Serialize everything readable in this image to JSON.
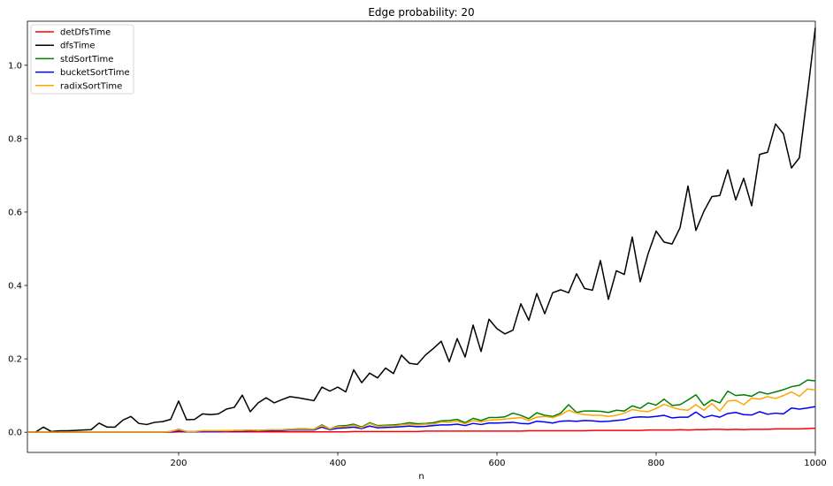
{
  "chart_data": {
    "type": "line",
    "title": "Edge probability: 20",
    "xlabel": "n",
    "ylabel": "",
    "xlim": [
      10,
      1000
    ],
    "ylim": [
      -0.055,
      1.12
    ],
    "x_ticks": [
      200,
      400,
      600,
      800,
      1000
    ],
    "y_ticks": [
      0.0,
      0.2,
      0.4,
      0.6,
      0.8,
      1.0
    ],
    "x_tick_labels": [
      "200",
      "400",
      "600",
      "800",
      "1000"
    ],
    "y_tick_labels": [
      "0.0",
      "0.2",
      "0.4",
      "0.6",
      "0.8",
      "1.0"
    ],
    "grid": false,
    "legend_position": "top-left",
    "x": [
      10,
      20,
      30,
      40,
      50,
      60,
      70,
      80,
      90,
      100,
      110,
      120,
      130,
      140,
      150,
      160,
      170,
      180,
      190,
      200,
      210,
      220,
      230,
      240,
      250,
      260,
      270,
      280,
      290,
      300,
      310,
      320,
      330,
      340,
      350,
      360,
      370,
      380,
      390,
      400,
      410,
      420,
      430,
      440,
      450,
      460,
      470,
      480,
      490,
      500,
      510,
      520,
      530,
      540,
      550,
      560,
      570,
      580,
      590,
      600,
      610,
      620,
      630,
      640,
      650,
      660,
      670,
      680,
      690,
      700,
      710,
      720,
      730,
      740,
      750,
      760,
      770,
      780,
      790,
      800,
      810,
      820,
      830,
      840,
      850,
      860,
      870,
      880,
      890,
      900,
      910,
      920,
      930,
      940,
      950,
      960,
      970,
      980,
      990,
      1000
    ],
    "series": [
      {
        "name": "detDfsTime",
        "color": "#ff0000",
        "values": [
          0,
          0,
          0,
          0,
          0,
          0,
          0,
          0,
          0,
          0,
          0,
          0,
          0,
          0,
          0,
          0,
          0,
          0,
          0,
          0.001,
          0.001,
          0.001,
          0.001,
          0.001,
          0.001,
          0.001,
          0.001,
          0.001,
          0.001,
          0.001,
          0.001,
          0.001,
          0.001,
          0.001,
          0.001,
          0.001,
          0.001,
          0.001,
          0.001,
          0.001,
          0.001,
          0.002,
          0.002,
          0.002,
          0.002,
          0.002,
          0.002,
          0.002,
          0.002,
          0.002,
          0.003,
          0.003,
          0.003,
          0.003,
          0.003,
          0.003,
          0.003,
          0.003,
          0.003,
          0.003,
          0.003,
          0.003,
          0.003,
          0.004,
          0.004,
          0.004,
          0.004,
          0.004,
          0.004,
          0.004,
          0.004,
          0.005,
          0.005,
          0.005,
          0.005,
          0.005,
          0.005,
          0.005,
          0.006,
          0.006,
          0.006,
          0.006,
          0.007,
          0.006,
          0.007,
          0.007,
          0.008,
          0.008,
          0.007,
          0.008,
          0.007,
          0.008,
          0.008,
          0.008,
          0.009,
          0.009,
          0.009,
          0.009,
          0.01,
          0.011
        ]
      },
      {
        "name": "dfsTime",
        "color": "#000000",
        "values": [
          0,
          0,
          0.014,
          0.002,
          0.004,
          0.004,
          0.005,
          0.006,
          0.007,
          0.025,
          0.014,
          0.014,
          0.033,
          0.043,
          0.024,
          0.021,
          0.027,
          0.029,
          0.035,
          0.085,
          0.034,
          0.035,
          0.05,
          0.048,
          0.05,
          0.063,
          0.068,
          0.101,
          0.056,
          0.08,
          0.094,
          0.08,
          0.089,
          0.097,
          0.094,
          0.09,
          0.086,
          0.123,
          0.112,
          0.123,
          0.11,
          0.17,
          0.135,
          0.161,
          0.148,
          0.175,
          0.16,
          0.21,
          0.188,
          0.185,
          0.21,
          0.228,
          0.248,
          0.192,
          0.255,
          0.205,
          0.292,
          0.22,
          0.308,
          0.282,
          0.268,
          0.278,
          0.35,
          0.305,
          0.378,
          0.323,
          0.38,
          0.388,
          0.38,
          0.432,
          0.392,
          0.387,
          0.468,
          0.362,
          0.44,
          0.43,
          0.532,
          0.41,
          0.487,
          0.548,
          0.518,
          0.513,
          0.557,
          0.671,
          0.55,
          0.602,
          0.642,
          0.645,
          0.715,
          0.633,
          0.692,
          0.617,
          0.757,
          0.763,
          0.84,
          0.813,
          0.72,
          0.748,
          0.92,
          1.102
        ]
      },
      {
        "name": "stdSortTime",
        "color": "#008000",
        "values": [
          0,
          0,
          0,
          0,
          0,
          0,
          0,
          0,
          0,
          0,
          0,
          0,
          0,
          0,
          0,
          0,
          0,
          0,
          0.002,
          0.008,
          0.002,
          0.002,
          0.004,
          0.004,
          0.004,
          0.004,
          0.005,
          0.005,
          0.006,
          0.005,
          0.006,
          0.007,
          0.007,
          0.008,
          0.009,
          0.009,
          0.008,
          0.02,
          0.009,
          0.017,
          0.018,
          0.022,
          0.014,
          0.026,
          0.018,
          0.019,
          0.02,
          0.022,
          0.026,
          0.023,
          0.024,
          0.026,
          0.031,
          0.032,
          0.035,
          0.026,
          0.038,
          0.032,
          0.04,
          0.04,
          0.042,
          0.052,
          0.046,
          0.037,
          0.053,
          0.046,
          0.043,
          0.052,
          0.075,
          0.054,
          0.058,
          0.058,
          0.057,
          0.054,
          0.06,
          0.058,
          0.072,
          0.065,
          0.08,
          0.074,
          0.09,
          0.073,
          0.075,
          0.088,
          0.102,
          0.073,
          0.088,
          0.08,
          0.112,
          0.1,
          0.102,
          0.098,
          0.11,
          0.104,
          0.11,
          0.116,
          0.124,
          0.128,
          0.142,
          0.14
        ]
      },
      {
        "name": "bucketSortTime",
        "color": "#0000ff",
        "values": [
          0,
          0,
          0,
          0,
          0,
          0,
          0,
          0,
          0,
          0,
          0,
          0,
          0,
          0,
          0,
          0,
          0,
          0,
          0.001,
          0.004,
          0.001,
          0.001,
          0.002,
          0.002,
          0.002,
          0.003,
          0.003,
          0.003,
          0.004,
          0.004,
          0.004,
          0.005,
          0.005,
          0.006,
          0.006,
          0.006,
          0.006,
          0.014,
          0.007,
          0.011,
          0.012,
          0.014,
          0.01,
          0.017,
          0.012,
          0.013,
          0.014,
          0.015,
          0.017,
          0.015,
          0.016,
          0.018,
          0.02,
          0.02,
          0.022,
          0.018,
          0.024,
          0.021,
          0.025,
          0.025,
          0.026,
          0.027,
          0.024,
          0.023,
          0.03,
          0.028,
          0.025,
          0.03,
          0.031,
          0.03,
          0.032,
          0.031,
          0.029,
          0.03,
          0.032,
          0.034,
          0.04,
          0.042,
          0.041,
          0.043,
          0.046,
          0.039,
          0.041,
          0.041,
          0.055,
          0.04,
          0.046,
          0.041,
          0.051,
          0.054,
          0.048,
          0.047,
          0.056,
          0.049,
          0.052,
          0.05,
          0.066,
          0.063,
          0.066,
          0.07
        ]
      },
      {
        "name": "radixSortTime",
        "color": "#ffa500",
        "values": [
          0,
          0,
          0,
          0,
          0,
          0,
          0,
          0,
          0,
          0,
          0,
          0,
          0,
          0,
          0,
          0,
          0,
          0,
          0.002,
          0.007,
          0.002,
          0.002,
          0.004,
          0.004,
          0.004,
          0.004,
          0.005,
          0.005,
          0.006,
          0.005,
          0.006,
          0.007,
          0.007,
          0.008,
          0.008,
          0.008,
          0.008,
          0.018,
          0.009,
          0.015,
          0.015,
          0.019,
          0.012,
          0.024,
          0.016,
          0.017,
          0.017,
          0.02,
          0.022,
          0.02,
          0.022,
          0.022,
          0.028,
          0.027,
          0.03,
          0.023,
          0.032,
          0.028,
          0.033,
          0.034,
          0.036,
          0.038,
          0.04,
          0.032,
          0.041,
          0.043,
          0.04,
          0.047,
          0.06,
          0.052,
          0.048,
          0.046,
          0.046,
          0.043,
          0.046,
          0.052,
          0.062,
          0.058,
          0.056,
          0.065,
          0.076,
          0.068,
          0.062,
          0.06,
          0.075,
          0.06,
          0.078,
          0.058,
          0.085,
          0.087,
          0.075,
          0.093,
          0.09,
          0.097,
          0.092,
          0.1,
          0.11,
          0.098,
          0.118,
          0.115
        ]
      }
    ]
  }
}
